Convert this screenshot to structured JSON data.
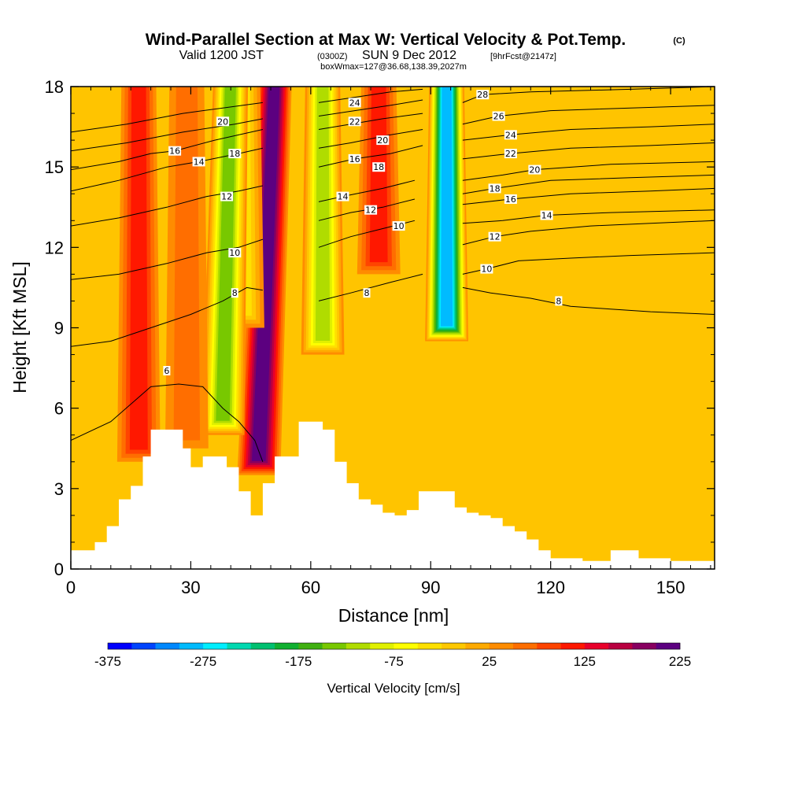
{
  "header": {
    "title": "Wind-Parallel Section at Max W: Vertical Velocity & Pot.Temp.",
    "copyright": "(C)",
    "valid_prefix": "Valid 1200 JST",
    "valid_utc": "(0300Z)",
    "valid_date": "SUN 9 Dec 2012",
    "forecast": "[9hrFcst@2147z]",
    "box_info": "boxWmax=127@36.68,138.39,2027m"
  },
  "chart_data": {
    "type": "heatmap",
    "xlabel": "Distance [nm]",
    "ylabel": "Height [Kft MSL]",
    "xlim": [
      0,
      161
    ],
    "ylim": [
      0,
      18
    ],
    "xticks": [
      0,
      30,
      60,
      90,
      120,
      150
    ],
    "yticks": [
      0,
      3,
      6,
      9,
      12,
      15,
      18
    ],
    "colorbar": {
      "title": "Vertical Velocity [cm/s]",
      "min": -375,
      "max": 225,
      "step": 25,
      "tick_labels": [
        "-375",
        "-275",
        "-175",
        "-75",
        "25",
        "125",
        "225"
      ],
      "colors": [
        "#0000ff",
        "#0044ff",
        "#0088ff",
        "#00bbff",
        "#00eeff",
        "#00d8b0",
        "#00c070",
        "#10b030",
        "#40b010",
        "#78c800",
        "#b0dc00",
        "#e0f000",
        "#ffff00",
        "#ffe000",
        "#ffc800",
        "#ffaa00",
        "#ff8c00",
        "#ff6e00",
        "#ff4400",
        "#ff1800",
        "#e8002a",
        "#b80040",
        "#880060",
        "#5c0080"
      ]
    },
    "velocity_bands": [
      {
        "x": 47,
        "x_top": 51,
        "y_bottom": 3.5,
        "y_top": 18,
        "value": 210
      },
      {
        "x": 43,
        "x_top": 43,
        "y_bottom": 9,
        "y_top": 18,
        "value": -40
      },
      {
        "x": 38,
        "x_top": 40,
        "y_bottom": 5,
        "y_top": 18,
        "value": -160
      },
      {
        "x": 29,
        "x_top": 29,
        "y_bottom": 4.5,
        "y_top": 18,
        "value": 60
      },
      {
        "x": 94,
        "x_top": 94,
        "y_bottom": 8.5,
        "y_top": 18,
        "value": -300
      },
      {
        "x": 63,
        "x_top": 63,
        "y_bottom": 8,
        "y_top": 18,
        "value": -120
      },
      {
        "x": 77,
        "x_top": 77,
        "y_bottom": 11,
        "y_top": 18,
        "value": 110
      },
      {
        "x": 17,
        "x_top": 17,
        "y_bottom": 4,
        "y_top": 18,
        "value": 110
      }
    ],
    "terrain": {
      "x": [
        0,
        3,
        6,
        9,
        12,
        15,
        18,
        20,
        22,
        25,
        28,
        30,
        33,
        36,
        39,
        42,
        45,
        48,
        51,
        54,
        57,
        60,
        63,
        66,
        69,
        72,
        75,
        78,
        81,
        84,
        87,
        90,
        93,
        96,
        99,
        102,
        105,
        108,
        111,
        114,
        117,
        120,
        124,
        128,
        132,
        135,
        138,
        142,
        145,
        150,
        155,
        161
      ],
      "height": [
        0.7,
        0.7,
        1.0,
        1.6,
        2.6,
        3.1,
        4.2,
        5.2,
        5.2,
        5.2,
        4.5,
        3.8,
        4.2,
        4.2,
        3.8,
        2.9,
        2.0,
        3.2,
        4.2,
        4.2,
        5.5,
        5.5,
        5.2,
        4.0,
        3.2,
        2.6,
        2.4,
        2.1,
        2.0,
        2.2,
        2.9,
        2.9,
        2.9,
        2.3,
        2.1,
        2.0,
        1.9,
        1.6,
        1.4,
        1.1,
        0.7,
        0.4,
        0.4,
        0.3,
        0.3,
        0.7,
        0.7,
        0.4,
        0.4,
        0.3,
        0.3,
        0.3
      ]
    },
    "theta_contours": [
      {
        "label": "6",
        "label_x": 24,
        "label_y": 7.4,
        "points": [
          [
            0,
            4.8
          ],
          [
            10,
            5.5
          ],
          [
            20,
            6.8
          ],
          [
            27,
            6.9
          ],
          [
            33,
            6.8
          ],
          [
            38,
            6.0
          ],
          [
            42,
            5.5
          ],
          [
            46,
            4.8
          ],
          [
            48,
            4.0
          ]
        ]
      },
      {
        "label": "8",
        "label_x": 41,
        "label_y": 10.3,
        "points": [
          [
            0,
            8.3
          ],
          [
            10,
            8.5
          ],
          [
            20,
            9.0
          ],
          [
            30,
            9.5
          ],
          [
            38,
            10.0
          ],
          [
            44,
            10.5
          ],
          [
            48,
            10.4
          ]
        ]
      },
      {
        "label": "8",
        "label_x": 74,
        "label_y": 10.3,
        "points": [
          [
            62,
            10.0
          ],
          [
            70,
            10.3
          ],
          [
            80,
            10.7
          ],
          [
            88,
            11.0
          ]
        ]
      },
      {
        "label": "8",
        "label_x": 122,
        "label_y": 10.0,
        "points": [
          [
            98,
            10.5
          ],
          [
            105,
            10.3
          ],
          [
            115,
            10.1
          ],
          [
            125,
            9.8
          ],
          [
            135,
            9.7
          ],
          [
            145,
            9.6
          ],
          [
            161,
            9.5
          ]
        ]
      },
      {
        "label": "10",
        "label_x": 41,
        "label_y": 11.8,
        "points": [
          [
            0,
            10.8
          ],
          [
            12,
            11.0
          ],
          [
            24,
            11.4
          ],
          [
            34,
            11.8
          ],
          [
            42,
            12.0
          ],
          [
            48,
            12.3
          ]
        ]
      },
      {
        "label": "10",
        "label_x": 82,
        "label_y": 12.8,
        "points": [
          [
            62,
            12.0
          ],
          [
            70,
            12.4
          ],
          [
            78,
            12.7
          ],
          [
            86,
            13.0
          ]
        ]
      },
      {
        "label": "10",
        "label_x": 104,
        "label_y": 11.2,
        "points": [
          [
            98,
            11.0
          ],
          [
            104,
            11.2
          ],
          [
            112,
            11.5
          ],
          [
            125,
            11.6
          ],
          [
            140,
            11.7
          ],
          [
            161,
            11.8
          ]
        ]
      },
      {
        "label": "12",
        "label_x": 39,
        "label_y": 13.9,
        "points": [
          [
            0,
            12.8
          ],
          [
            12,
            13.1
          ],
          [
            24,
            13.5
          ],
          [
            34,
            13.9
          ],
          [
            42,
            14.1
          ],
          [
            48,
            14.3
          ]
        ]
      },
      {
        "label": "12",
        "label_x": 75,
        "label_y": 13.4,
        "points": [
          [
            62,
            13.0
          ],
          [
            70,
            13.3
          ],
          [
            78,
            13.5
          ],
          [
            86,
            13.8
          ]
        ]
      },
      {
        "label": "12",
        "label_x": 106,
        "label_y": 12.4,
        "points": [
          [
            98,
            12.1
          ],
          [
            106,
            12.4
          ],
          [
            115,
            12.6
          ],
          [
            130,
            12.8
          ],
          [
            145,
            12.9
          ],
          [
            161,
            13.0
          ]
        ]
      },
      {
        "label": "14",
        "label_x": 32,
        "label_y": 15.2,
        "points": [
          [
            0,
            14.1
          ],
          [
            12,
            14.5
          ],
          [
            24,
            15.0
          ],
          [
            32,
            15.2
          ],
          [
            42,
            15.5
          ],
          [
            48,
            15.7
          ]
        ]
      },
      {
        "label": "14",
        "label_x": 68,
        "label_y": 13.9,
        "points": [
          [
            62,
            13.7
          ],
          [
            68,
            13.9
          ],
          [
            78,
            14.2
          ],
          [
            86,
            14.5
          ]
        ]
      },
      {
        "label": "14",
        "label_x": 119,
        "label_y": 13.2,
        "points": [
          [
            98,
            12.9
          ],
          [
            108,
            13.0
          ],
          [
            119,
            13.2
          ],
          [
            135,
            13.3
          ],
          [
            161,
            13.4
          ]
        ]
      },
      {
        "label": "16",
        "label_x": 26,
        "label_y": 15.6,
        "points": [
          [
            0,
            14.9
          ],
          [
            12,
            15.2
          ],
          [
            20,
            15.5
          ],
          [
            26,
            15.6
          ],
          [
            36,
            16.0
          ],
          [
            48,
            16.4
          ]
        ]
      },
      {
        "label": "16",
        "label_x": 71,
        "label_y": 15.3,
        "points": [
          [
            62,
            15.0
          ],
          [
            71,
            15.3
          ],
          [
            80,
            15.5
          ],
          [
            88,
            15.8
          ]
        ]
      },
      {
        "label": "16",
        "label_x": 110,
        "label_y": 13.8,
        "points": [
          [
            98,
            13.6
          ],
          [
            110,
            13.8
          ],
          [
            125,
            14.0
          ],
          [
            145,
            14.1
          ],
          [
            161,
            14.2
          ]
        ]
      },
      {
        "label": "18",
        "label_x": 41,
        "label_y": 15.5,
        "points": [
          [
            0,
            15.6
          ],
          [
            14,
            15.9
          ],
          [
            28,
            16.3
          ],
          [
            41,
            16.6
          ],
          [
            48,
            16.8
          ]
        ]
      },
      {
        "label": "18",
        "label_x": 106,
        "label_y": 14.2,
        "points": [
          [
            98,
            14.0
          ],
          [
            106,
            14.2
          ],
          [
            120,
            14.5
          ],
          [
            140,
            14.6
          ],
          [
            161,
            14.7
          ]
        ]
      },
      {
        "label": "18",
        "label_x": 77,
        "label_y": 15.0,
        "points": [
          [
            62,
            15.7
          ],
          [
            70,
            15.9
          ],
          [
            80,
            16.2
          ],
          [
            88,
            16.4
          ]
        ]
      },
      {
        "label": "20",
        "label_x": 38,
        "label_y": 16.7,
        "points": [
          [
            0,
            16.3
          ],
          [
            14,
            16.6
          ],
          [
            28,
            17.0
          ],
          [
            38,
            17.2
          ],
          [
            48,
            17.4
          ]
        ]
      },
      {
        "label": "20",
        "label_x": 78,
        "label_y": 16.0,
        "points": [
          [
            62,
            16.4
          ],
          [
            70,
            16.6
          ],
          [
            78,
            16.8
          ],
          [
            88,
            17.0
          ]
        ]
      },
      {
        "label": "20",
        "label_x": 116,
        "label_y": 14.9,
        "points": [
          [
            98,
            14.5
          ],
          [
            108,
            14.7
          ],
          [
            116,
            14.9
          ],
          [
            135,
            15.1
          ],
          [
            161,
            15.2
          ]
        ]
      },
      {
        "label": "22",
        "label_x": 71,
        "label_y": 16.7,
        "points": [
          [
            62,
            16.9
          ],
          [
            71,
            17.1
          ],
          [
            80,
            17.3
          ],
          [
            88,
            17.5
          ]
        ]
      },
      {
        "label": "22",
        "label_x": 110,
        "label_y": 15.5,
        "points": [
          [
            98,
            15.3
          ],
          [
            110,
            15.5
          ],
          [
            125,
            15.7
          ],
          [
            145,
            15.8
          ],
          [
            161,
            15.9
          ]
        ]
      },
      {
        "label": "24",
        "label_x": 71,
        "label_y": 17.4,
        "points": [
          [
            62,
            17.4
          ],
          [
            71,
            17.6
          ],
          [
            80,
            17.8
          ],
          [
            88,
            17.9
          ]
        ]
      },
      {
        "label": "24",
        "label_x": 110,
        "label_y": 16.2,
        "points": [
          [
            98,
            16.0
          ],
          [
            110,
            16.2
          ],
          [
            125,
            16.4
          ],
          [
            145,
            16.5
          ],
          [
            161,
            16.6
          ]
        ]
      },
      {
        "label": "26",
        "label_x": 107,
        "label_y": 16.9,
        "points": [
          [
            98,
            16.6
          ],
          [
            107,
            16.9
          ],
          [
            120,
            17.1
          ],
          [
            140,
            17.2
          ],
          [
            161,
            17.3
          ]
        ]
      },
      {
        "label": "28",
        "label_x": 103,
        "label_y": 17.7,
        "points": [
          [
            98,
            17.4
          ],
          [
            103,
            17.7
          ],
          [
            115,
            17.8
          ],
          [
            140,
            17.9
          ],
          [
            161,
            18.0
          ]
        ]
      }
    ]
  }
}
